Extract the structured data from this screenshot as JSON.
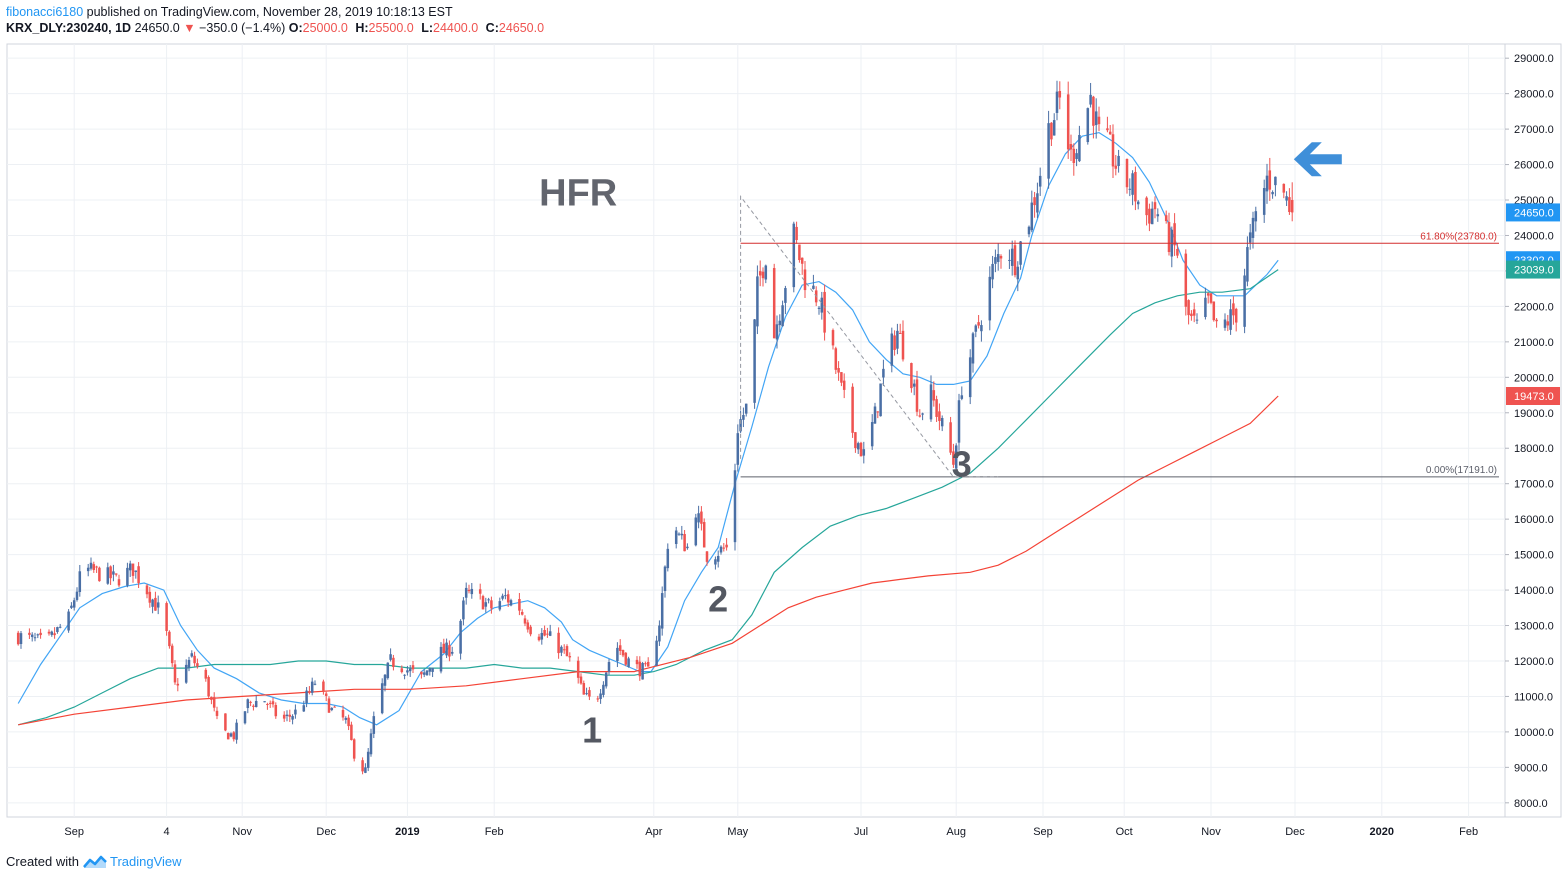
{
  "header": {
    "author": "fibonacci6180",
    "published_text": "published on TradingView.com, November 28, 2019 10:18:13 EST",
    "symbol": "KRX_DLY:230240, 1D",
    "last": "24650.0",
    "change_arrow": "▼",
    "change": "−350.0 (−1.4%)",
    "open_label": "O:",
    "open": "25000.0",
    "high_label": "H:",
    "high": "25500.0",
    "low_label": "L:",
    "low": "24400.0",
    "close_label": "C:",
    "close": "24650.0"
  },
  "footer": {
    "created_with": "Created with",
    "brand": "TradingView",
    "logo_icon": "tradingview-logo-icon"
  },
  "colors": {
    "up": "#4a6fa5",
    "down": "#ef5350",
    "ma_fast": "#42a5f5",
    "ma_mid": "#26a69a",
    "ma_slow": "#f44336",
    "fib_high": "#d32f2f",
    "fib_low": "#5d606b",
    "grid": "#edf0f4",
    "axis_text": "#131722",
    "annotation": "#545862",
    "arrow": "#3f8fd9"
  },
  "chart_data": {
    "type": "candlestick",
    "price_axis": {
      "range": [
        7600,
        29400
      ],
      "ticks": [
        "29000.0",
        "28000.0",
        "27000.0",
        "26000.0",
        "25000.0",
        "24000.0",
        "23000.0",
        "22000.0",
        "21000.0",
        "20000.0",
        "19000.0",
        "18000.0",
        "17000.0",
        "16000.0",
        "15000.0",
        "14000.0",
        "13000.0",
        "12000.0",
        "11000.0",
        "10000.0",
        "9000.0",
        "8000.0"
      ]
    },
    "time_axis": {
      "ticks": [
        {
          "label": "Sep",
          "day": 20,
          "bold": false
        },
        {
          "label": "4",
          "day": 53,
          "bold": false
        },
        {
          "label": "Nov",
          "day": 80,
          "bold": false
        },
        {
          "label": "Dec",
          "day": 110,
          "bold": false
        },
        {
          "label": "2019",
          "day": 139,
          "bold": true
        },
        {
          "label": "Feb",
          "day": 170,
          "bold": false
        },
        {
          "label": "Apr",
          "day": 227,
          "bold": false
        },
        {
          "label": "May",
          "day": 257,
          "bold": false
        },
        {
          "label": "Jul",
          "day": 301,
          "bold": false
        },
        {
          "label": "Aug",
          "day": 335,
          "bold": false
        },
        {
          "label": "Sep",
          "day": 366,
          "bold": false
        },
        {
          "label": "Oct",
          "day": 395,
          "bold": false
        },
        {
          "label": "Nov",
          "day": 426,
          "bold": false
        },
        {
          "label": "Dec",
          "day": 456,
          "bold": false
        },
        {
          "label": "2020",
          "day": 487,
          "bold": true
        },
        {
          "label": "Feb",
          "day": 518,
          "bold": false
        }
      ],
      "day_range": [
        -4,
        531
      ]
    },
    "close_anchors": [
      [
        0,
        12700
      ],
      [
        10,
        12500
      ],
      [
        18,
        13200
      ],
      [
        23,
        14600
      ],
      [
        28,
        14500
      ],
      [
        35,
        14300
      ],
      [
        41,
        14600
      ],
      [
        46,
        14000
      ],
      [
        52,
        13200
      ],
      [
        56,
        11300
      ],
      [
        62,
        12100
      ],
      [
        67,
        11400
      ],
      [
        72,
        10000
      ],
      [
        77,
        9900
      ],
      [
        82,
        10800
      ],
      [
        88,
        10900
      ],
      [
        94,
        10300
      ],
      [
        100,
        10600
      ],
      [
        106,
        11400
      ],
      [
        112,
        10600
      ],
      [
        117,
        10300
      ],
      [
        121,
        9100
      ],
      [
        124,
        8900
      ],
      [
        128,
        10800
      ],
      [
        133,
        12000
      ],
      [
        138,
        11800
      ],
      [
        144,
        11500
      ],
      [
        150,
        12200
      ],
      [
        156,
        12400
      ],
      [
        160,
        13900
      ],
      [
        164,
        13800
      ],
      [
        169,
        13500
      ],
      [
        174,
        13800
      ],
      [
        179,
        13500
      ],
      [
        184,
        12800
      ],
      [
        189,
        12700
      ],
      [
        193,
        12400
      ],
      [
        198,
        11900
      ],
      [
        202,
        11000
      ],
      [
        206,
        10800
      ],
      [
        209,
        11500
      ],
      [
        213,
        12500
      ],
      [
        218,
        12000
      ],
      [
        221,
        11800
      ],
      [
        225,
        11700
      ],
      [
        229,
        13100
      ],
      [
        233,
        16100
      ],
      [
        236,
        15500
      ],
      [
        239,
        15200
      ],
      [
        242,
        16300
      ],
      [
        246,
        15000
      ],
      [
        250,
        15100
      ],
      [
        254,
        15200
      ],
      [
        257,
        18600
      ],
      [
        261,
        19300
      ],
      [
        264,
        22500
      ],
      [
        267,
        23500
      ],
      [
        270,
        21200
      ],
      [
        274,
        22700
      ],
      [
        277,
        24000
      ],
      [
        281,
        22800
      ],
      [
        286,
        22200
      ],
      [
        290,
        20900
      ],
      [
        294,
        19600
      ],
      [
        298,
        18500
      ],
      [
        302,
        17800
      ],
      [
        306,
        18900
      ],
      [
        310,
        20500
      ],
      [
        314,
        21300
      ],
      [
        318,
        20400
      ],
      [
        322,
        19000
      ],
      [
        326,
        19500
      ],
      [
        330,
        18600
      ],
      [
        334,
        17600
      ],
      [
        337,
        19800
      ],
      [
        340,
        20600
      ],
      [
        344,
        21800
      ],
      [
        348,
        23000
      ],
      [
        352,
        23800
      ],
      [
        356,
        23300
      ],
      [
        360,
        24200
      ],
      [
        364,
        25400
      ],
      [
        368,
        27000
      ],
      [
        372,
        27800
      ],
      [
        376,
        26200
      ],
      [
        380,
        27100
      ],
      [
        383,
        27900
      ],
      [
        386,
        26800
      ],
      [
        390,
        26400
      ],
      [
        394,
        25600
      ],
      [
        398,
        25400
      ],
      [
        402,
        24500
      ],
      [
        406,
        24800
      ],
      [
        410,
        24000
      ],
      [
        414,
        23500
      ],
      [
        417,
        21800
      ],
      [
        421,
        21400
      ],
      [
        425,
        22100
      ],
      [
        428,
        21300
      ],
      [
        432,
        21600
      ],
      [
        436,
        21900
      ],
      [
        439,
        23500
      ],
      [
        442,
        24500
      ],
      [
        446,
        25600
      ],
      [
        451,
        25400
      ],
      [
        455,
        24650
      ]
    ],
    "series": [
      {
        "key": "ma_fast",
        "anchors": [
          [
            0,
            10800
          ],
          [
            8,
            11900
          ],
          [
            15,
            12700
          ],
          [
            22,
            13500
          ],
          [
            30,
            13900
          ],
          [
            38,
            14100
          ],
          [
            45,
            14200
          ],
          [
            52,
            14000
          ],
          [
            58,
            13000
          ],
          [
            64,
            12300
          ],
          [
            70,
            11800
          ],
          [
            78,
            11500
          ],
          [
            86,
            11100
          ],
          [
            94,
            10900
          ],
          [
            102,
            10800
          ],
          [
            110,
            10800
          ],
          [
            116,
            10700
          ],
          [
            122,
            10400
          ],
          [
            128,
            10200
          ],
          [
            136,
            10600
          ],
          [
            144,
            11700
          ],
          [
            152,
            12200
          ],
          [
            158,
            12800
          ],
          [
            164,
            13200
          ],
          [
            170,
            13500
          ],
          [
            176,
            13600
          ],
          [
            182,
            13700
          ],
          [
            188,
            13500
          ],
          [
            194,
            13100
          ],
          [
            198,
            12600
          ],
          [
            204,
            12300
          ],
          [
            210,
            12100
          ],
          [
            216,
            11900
          ],
          [
            222,
            11700
          ],
          [
            226,
            11700
          ],
          [
            232,
            12400
          ],
          [
            238,
            13700
          ],
          [
            244,
            14500
          ],
          [
            250,
            15200
          ],
          [
            256,
            17000
          ],
          [
            262,
            18600
          ],
          [
            268,
            20300
          ],
          [
            274,
            21700
          ],
          [
            280,
            22600
          ],
          [
            286,
            22700
          ],
          [
            292,
            22400
          ],
          [
            298,
            21900
          ],
          [
            304,
            21000
          ],
          [
            310,
            20500
          ],
          [
            316,
            20100
          ],
          [
            322,
            20000
          ],
          [
            328,
            19800
          ],
          [
            334,
            19800
          ],
          [
            340,
            19900
          ],
          [
            346,
            20600
          ],
          [
            352,
            21800
          ],
          [
            358,
            22800
          ],
          [
            362,
            24000
          ],
          [
            368,
            25400
          ],
          [
            374,
            26300
          ],
          [
            380,
            26800
          ],
          [
            386,
            26900
          ],
          [
            392,
            26600
          ],
          [
            398,
            26200
          ],
          [
            404,
            25500
          ],
          [
            410,
            24500
          ],
          [
            416,
            23300
          ],
          [
            422,
            22600
          ],
          [
            428,
            22300
          ],
          [
            434,
            22300
          ],
          [
            438,
            22300
          ],
          [
            442,
            22600
          ],
          [
            446,
            22900
          ],
          [
            450,
            23300
          ]
        ]
      },
      {
        "key": "ma_mid",
        "anchors": [
          [
            0,
            10200
          ],
          [
            10,
            10400
          ],
          [
            20,
            10700
          ],
          [
            30,
            11100
          ],
          [
            40,
            11500
          ],
          [
            50,
            11800
          ],
          [
            60,
            11800
          ],
          [
            70,
            11900
          ],
          [
            80,
            11900
          ],
          [
            90,
            11900
          ],
          [
            100,
            12000
          ],
          [
            110,
            12000
          ],
          [
            120,
            11900
          ],
          [
            130,
            11900
          ],
          [
            140,
            11800
          ],
          [
            150,
            11800
          ],
          [
            160,
            11800
          ],
          [
            170,
            11900
          ],
          [
            180,
            11800
          ],
          [
            190,
            11800
          ],
          [
            200,
            11700
          ],
          [
            210,
            11600
          ],
          [
            220,
            11600
          ],
          [
            227,
            11700
          ],
          [
            235,
            11900
          ],
          [
            245,
            12300
          ],
          [
            255,
            12600
          ],
          [
            262,
            13300
          ],
          [
            270,
            14500
          ],
          [
            280,
            15200
          ],
          [
            290,
            15800
          ],
          [
            300,
            16100
          ],
          [
            310,
            16300
          ],
          [
            320,
            16600
          ],
          [
            330,
            16900
          ],
          [
            340,
            17300
          ],
          [
            350,
            18000
          ],
          [
            360,
            18800
          ],
          [
            370,
            19600
          ],
          [
            380,
            20400
          ],
          [
            390,
            21200
          ],
          [
            398,
            21800
          ],
          [
            406,
            22100
          ],
          [
            414,
            22300
          ],
          [
            422,
            22400
          ],
          [
            430,
            22400
          ],
          [
            440,
            22500
          ],
          [
            450,
            23039
          ]
        ]
      },
      {
        "key": "ma_slow",
        "anchors": [
          [
            0,
            10200
          ],
          [
            20,
            10500
          ],
          [
            40,
            10700
          ],
          [
            60,
            10900
          ],
          [
            80,
            11000
          ],
          [
            100,
            11100
          ],
          [
            120,
            11200
          ],
          [
            140,
            11200
          ],
          [
            160,
            11300
          ],
          [
            180,
            11500
          ],
          [
            200,
            11700
          ],
          [
            220,
            11700
          ],
          [
            240,
            12100
          ],
          [
            255,
            12500
          ],
          [
            265,
            13000
          ],
          [
            275,
            13500
          ],
          [
            285,
            13800
          ],
          [
            295,
            14000
          ],
          [
            305,
            14200
          ],
          [
            315,
            14300
          ],
          [
            325,
            14400
          ],
          [
            340,
            14500
          ],
          [
            350,
            14700
          ],
          [
            360,
            15100
          ],
          [
            370,
            15600
          ],
          [
            380,
            16100
          ],
          [
            390,
            16600
          ],
          [
            400,
            17100
          ],
          [
            410,
            17500
          ],
          [
            420,
            17900
          ],
          [
            430,
            18300
          ],
          [
            440,
            18700
          ],
          [
            450,
            19473
          ]
        ]
      }
    ],
    "fib": [
      {
        "label": "61.80%(23780.0)",
        "price": 23780,
        "x_from_day": 258,
        "key": "fib_high"
      },
      {
        "label": "0.00%(17191.0)",
        "price": 17191,
        "x_from_day": 258,
        "key": "fib_low"
      }
    ],
    "trend_points": [
      [
        258,
        17700
      ],
      [
        258,
        25100
      ],
      [
        334,
        17191
      ],
      [
        350,
        17191
      ]
    ],
    "price_labels": [
      {
        "text": "24650.0",
        "price": 24650,
        "color": "#2196f3"
      },
      {
        "text": "23302.0",
        "price": 23302,
        "color": "#2196f3"
      },
      {
        "text": "23039.0",
        "price": 23039,
        "color": "#26a69a"
      },
      {
        "text": "19473.0",
        "price": 19473,
        "color": "#ef5350"
      }
    ],
    "annotations": {
      "title": {
        "text": "HFR",
        "day": 200,
        "price": 24850
      },
      "wave": [
        {
          "text": "1",
          "day": 205,
          "price": 9700
        },
        {
          "text": "2",
          "day": 250,
          "price": 13400
        },
        {
          "text": "3",
          "day": 337,
          "price": 17200
        }
      ],
      "arrow": {
        "day": 462,
        "price": 26150,
        "icon": "left-arrow-icon"
      }
    }
  }
}
